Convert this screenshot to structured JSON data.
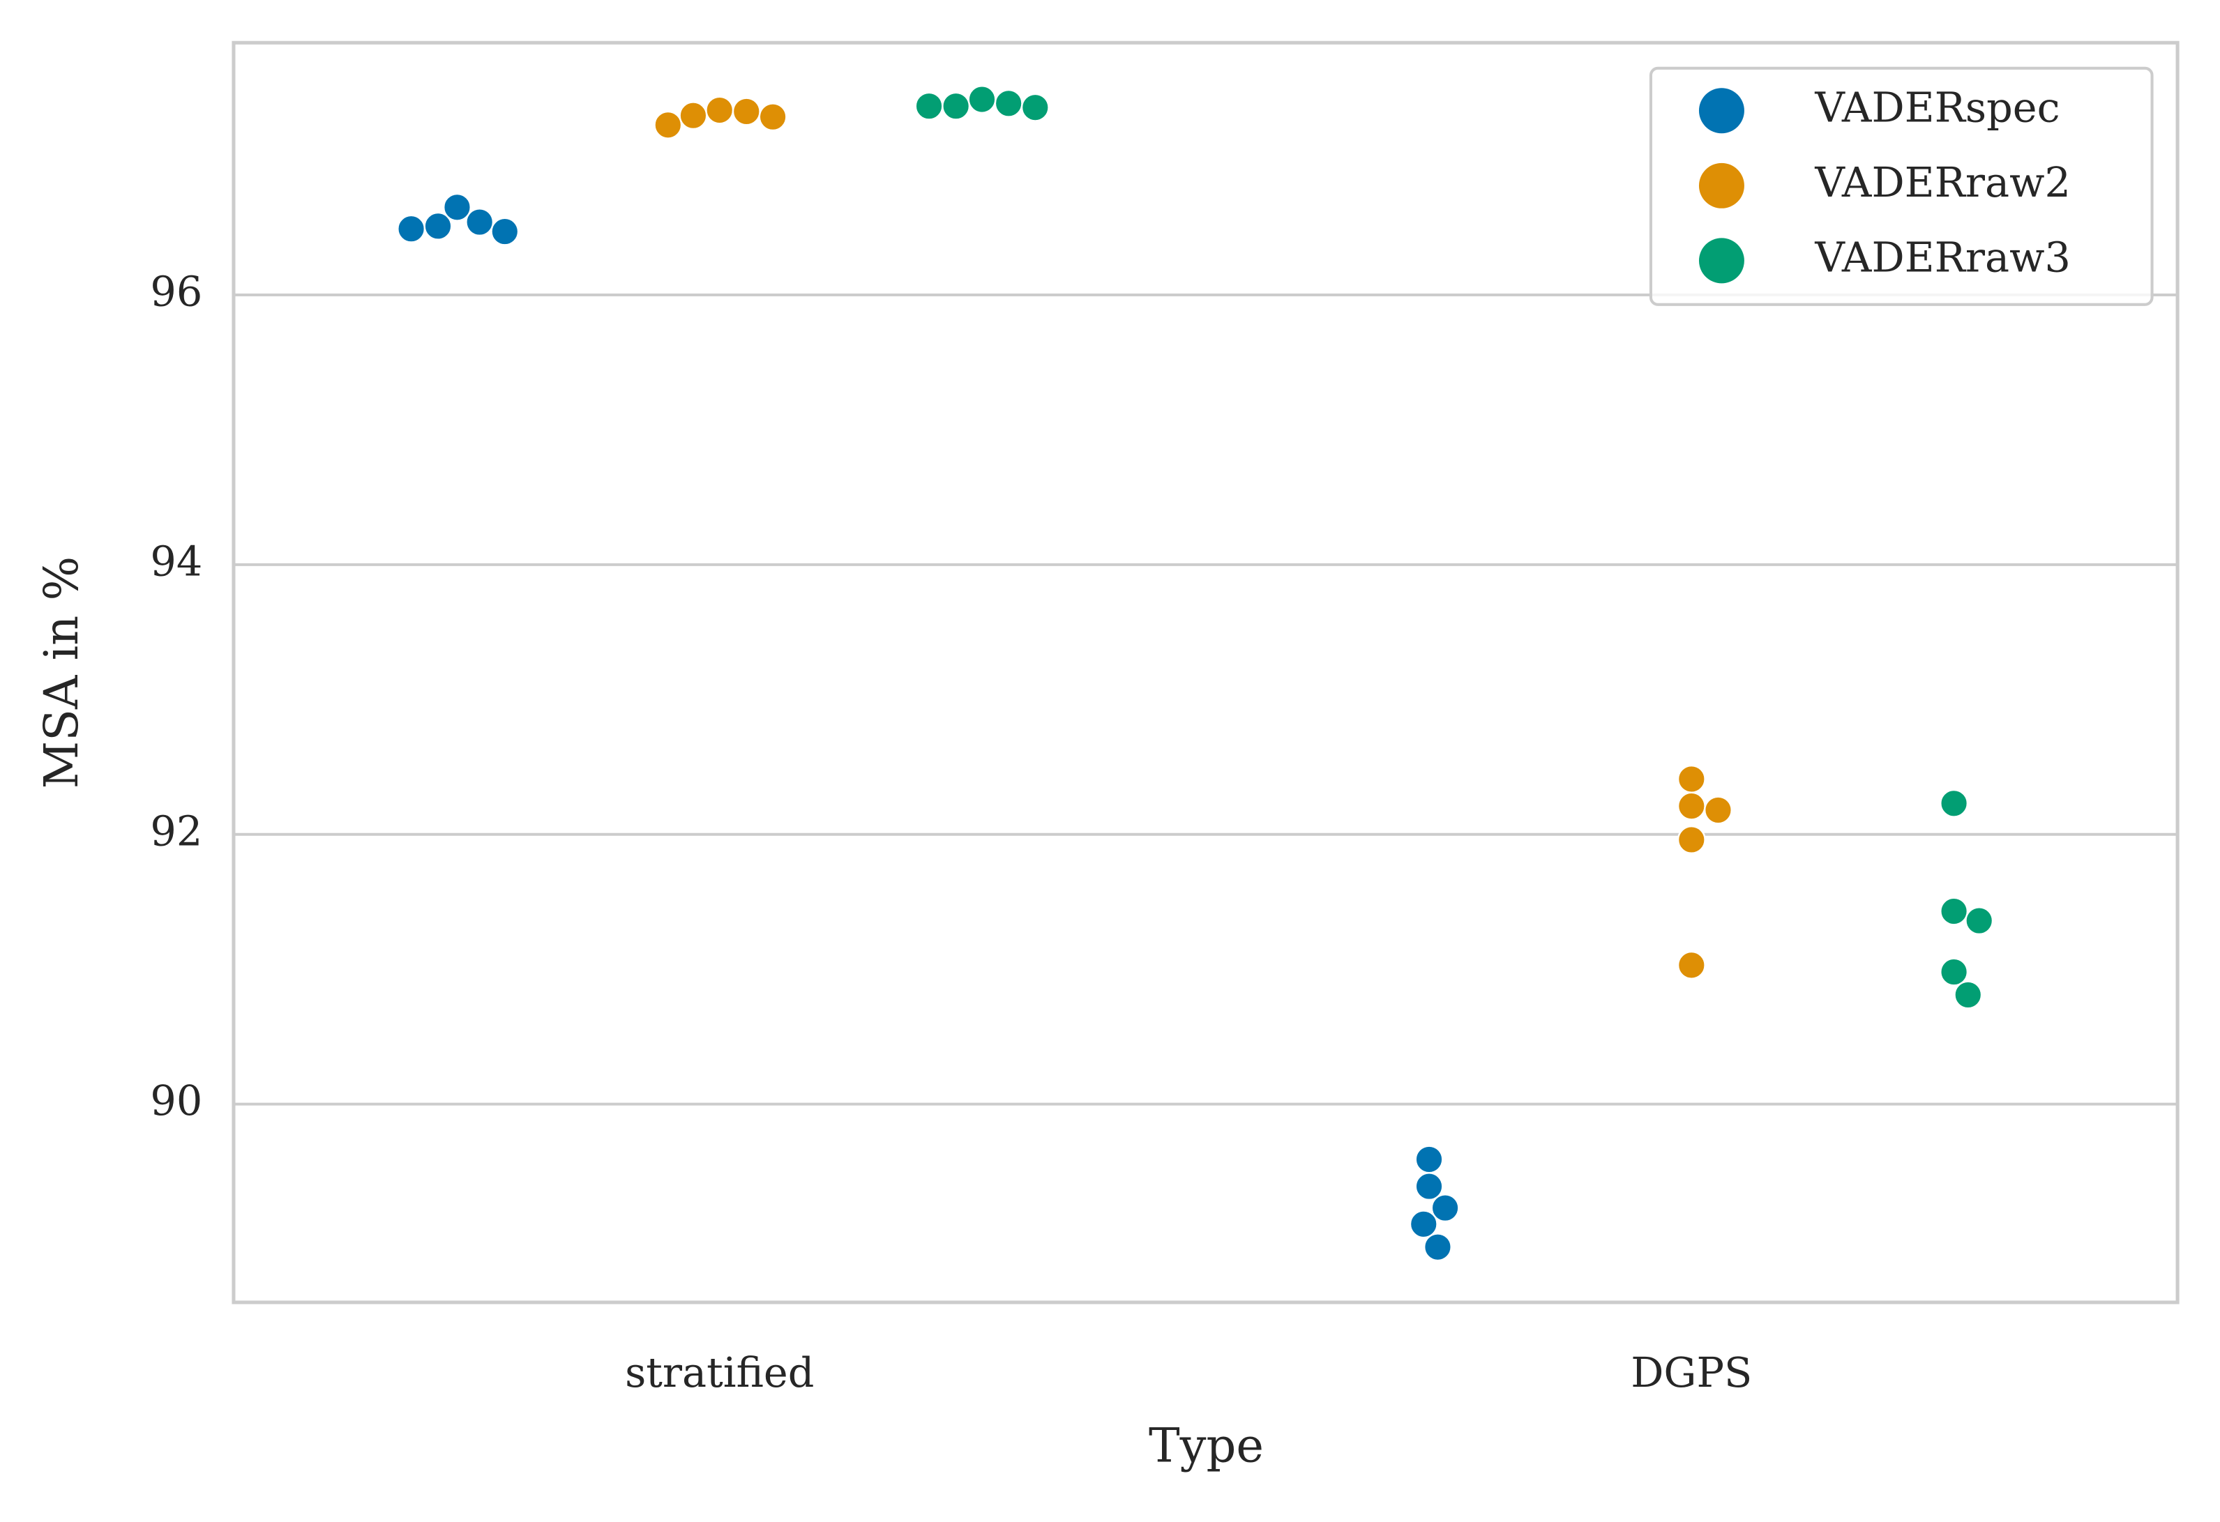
{
  "chart_data": {
    "type": "swarm",
    "xlabel": "Type",
    "ylabel": "MSA in %",
    "categories": [
      "stratified",
      "DGPS"
    ],
    "series": [
      {
        "name": "VADERspec",
        "color": "#0173b2",
        "values": [
          [
            96.54,
            96.49,
            96.47,
            96.51,
            96.65
          ],
          [
            89.59,
            89.39,
            89.23,
            89.11,
            88.94
          ]
        ]
      },
      {
        "name": "VADERraw2",
        "color": "#de8f05",
        "values": [
          [
            97.37,
            97.32,
            97.26,
            97.33,
            97.36
          ],
          [
            92.41,
            92.21,
            92.18,
            91.96,
            91.03
          ]
        ]
      },
      {
        "name": "VADERraw3",
        "color": "#029e73",
        "values": [
          [
            97.42,
            97.4,
            97.39,
            97.4,
            97.45
          ],
          [
            92.23,
            91.43,
            91.36,
            90.98,
            90.81
          ]
        ]
      }
    ],
    "ylim": [
      88.53,
      97.87
    ],
    "yticks": [
      90,
      92,
      94,
      96
    ],
    "grid": true,
    "legend": "upper right"
  }
}
